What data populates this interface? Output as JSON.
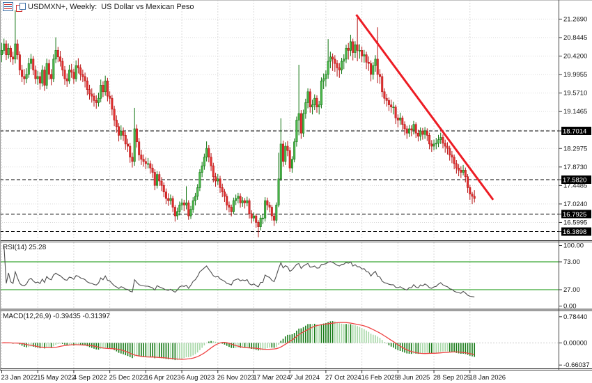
{
  "header": {
    "title": "USDMXN+, Weekly:  US Dollar vs Mexican Peso"
  },
  "colors": {
    "bull_fill": "#4cba4c",
    "bull_stroke": "#117411",
    "bear_fill": "#e63232",
    "bear_stroke": "#b51414",
    "grid": "#d9d9d9",
    "level_dash": "#000000",
    "trendline": "#ed1c24",
    "rsi_line": "#4d4d4d",
    "rsi_level": "#089000",
    "hist_dark": "#157a15",
    "hist_light": "#a6d7a6",
    "signal": "#ef4444",
    "axis_text": "#111111",
    "badge_bg": "#000000",
    "badge_text": "#ffffff"
  },
  "chart_data": {
    "type": "candlestick",
    "symbol": "USDMXN+",
    "timeframe": "Weekly",
    "description": "US Dollar vs Mexican Peso",
    "ylim": [
      16.21,
      21.71
    ],
    "price_axis_labels": [
      {
        "text": "21.2690",
        "price": 21.269
      },
      {
        "text": "20.8445",
        "price": 20.8445
      },
      {
        "text": "20.4200",
        "price": 20.42
      },
      {
        "text": "19.9955",
        "price": 19.9955
      },
      {
        "text": "19.5710",
        "price": 19.571
      },
      {
        "text": "19.1465",
        "price": 19.1465
      },
      {
        "text": "18.2975",
        "price": 18.2975
      },
      {
        "text": "17.8730",
        "price": 17.873
      },
      {
        "text": "17.4485",
        "price": 17.4485
      },
      {
        "text": "17.0240",
        "price": 17.024
      },
      {
        "text": "16.5995",
        "price": 16.5995
      }
    ],
    "level_badges": [
      {
        "text": "18.7014",
        "price": 18.7014
      },
      {
        "text": "17.5820",
        "price": 17.582
      },
      {
        "text": "16.7925",
        "price": 16.7925
      },
      {
        "text": "16.3898",
        "price": 16.3898
      }
    ],
    "horizontal_levels": [
      18.7014,
      17.582,
      16.7925,
      16.3898
    ],
    "trendline": {
      "week1": 157.5,
      "price1": 21.37,
      "week2": 218.3,
      "price2": 17.12
    },
    "time_axis_labels": [
      {
        "text": "23 Jan 2022",
        "week": 0
      },
      {
        "text": "15 May 2022",
        "week": 16
      },
      {
        "text": "4 Sep 2022",
        "week": 32
      },
      {
        "text": "25 Dec 2022",
        "week": 48
      },
      {
        "text": "16 Apr 2023",
        "week": 64
      },
      {
        "text": "6 Aug 2023",
        "week": 80
      },
      {
        "text": "26 Nov 2023",
        "week": 96
      },
      {
        "text": "17 Mar 2024",
        "week": 112
      },
      {
        "text": "7 Jul 2024",
        "week": 128
      },
      {
        "text": "27 Oct 2024",
        "week": 144
      },
      {
        "text": "16 Feb 2025",
        "week": 160
      },
      {
        "text": "8 Jun 2025",
        "week": 176
      },
      {
        "text": "28 Sep 2025",
        "week": 192
      },
      {
        "text": "18 Jan 2026",
        "week": 208
      }
    ],
    "rsi": {
      "label": "RSI(14) 25.28",
      "period": 14,
      "current": 25.28,
      "levels": [
        73,
        27
      ],
      "scale_labels": [
        {
          "text": "100.00",
          "value": 100
        },
        {
          "text": "73.00",
          "value": 73
        },
        {
          "text": "27.00",
          "value": 27
        },
        {
          "text": "0.00",
          "value": 0
        }
      ]
    },
    "macd": {
      "label": "MACD(12,26,9) -0.39435 -0.31397",
      "fast": 12,
      "slow": 26,
      "signal_period": 9,
      "current_macd": -0.39435,
      "current_signal": -0.31397,
      "scale_labels": [
        {
          "text": "0.78440",
          "value": 0.7844
        },
        {
          "text": "0.00000",
          "value": 0
        },
        {
          "text": "-0.66037",
          "value": -0.66037
        }
      ]
    },
    "candles_ohlc": [
      [
        20.45,
        20.72,
        20.28,
        20.55
      ],
      [
        20.55,
        20.82,
        20.47,
        20.7
      ],
      [
        20.7,
        20.78,
        20.33,
        20.45
      ],
      [
        20.45,
        20.71,
        20.36,
        20.6
      ],
      [
        20.6,
        20.66,
        20.28,
        20.4
      ],
      [
        20.4,
        20.52,
        20.22,
        20.35
      ],
      [
        20.35,
        21.47,
        20.25,
        20.7
      ],
      [
        20.7,
        20.8,
        20.34,
        20.45
      ],
      [
        20.45,
        20.53,
        19.98,
        20.1
      ],
      [
        20.1,
        20.22,
        19.82,
        19.95
      ],
      [
        19.95,
        20.12,
        19.76,
        19.9
      ],
      [
        19.9,
        20.14,
        19.8,
        20.0
      ],
      [
        20.0,
        20.38,
        19.92,
        20.25
      ],
      [
        20.25,
        20.47,
        20.12,
        20.35
      ],
      [
        20.35,
        20.42,
        19.98,
        20.1
      ],
      [
        20.1,
        20.2,
        19.78,
        19.9
      ],
      [
        19.9,
        20.08,
        19.76,
        19.95
      ],
      [
        19.95,
        20.05,
        19.65,
        19.8
      ],
      [
        19.8,
        20.21,
        19.72,
        20.1
      ],
      [
        20.1,
        20.18,
        19.62,
        19.75
      ],
      [
        19.75,
        20.36,
        19.66,
        20.25
      ],
      [
        20.25,
        20.34,
        19.88,
        20.0
      ],
      [
        20.0,
        20.12,
        19.75,
        19.9
      ],
      [
        19.9,
        20.46,
        19.82,
        20.35
      ],
      [
        20.35,
        20.85,
        20.26,
        20.55
      ],
      [
        20.55,
        20.63,
        20.28,
        20.4
      ],
      [
        20.4,
        20.54,
        20.18,
        20.3
      ],
      [
        20.3,
        20.38,
        19.96,
        20.1
      ],
      [
        20.1,
        20.19,
        19.76,
        19.9
      ],
      [
        19.9,
        20.02,
        19.71,
        19.85
      ],
      [
        19.85,
        20.22,
        19.78,
        20.1
      ],
      [
        20.1,
        20.24,
        19.92,
        20.05
      ],
      [
        20.05,
        20.13,
        19.78,
        19.9
      ],
      [
        19.9,
        20.32,
        19.83,
        20.2
      ],
      [
        20.2,
        20.37,
        20.02,
        20.15
      ],
      [
        20.15,
        20.23,
        19.86,
        20.0
      ],
      [
        20.0,
        20.11,
        19.82,
        19.95
      ],
      [
        19.95,
        20.04,
        19.7,
        19.85
      ],
      [
        19.85,
        19.93,
        19.52,
        19.65
      ],
      [
        19.65,
        19.76,
        19.42,
        19.55
      ],
      [
        19.55,
        19.68,
        19.35,
        19.5
      ],
      [
        19.5,
        19.57,
        19.26,
        19.4
      ],
      [
        19.4,
        19.52,
        19.21,
        19.35
      ],
      [
        19.35,
        19.58,
        19.26,
        19.45
      ],
      [
        19.45,
        19.88,
        19.36,
        19.75
      ],
      [
        19.75,
        19.84,
        19.48,
        19.6
      ],
      [
        19.6,
        19.97,
        19.51,
        19.85
      ],
      [
        19.85,
        19.92,
        19.38,
        19.5
      ],
      [
        19.5,
        19.61,
        19.32,
        19.45
      ],
      [
        19.45,
        19.53,
        19.06,
        19.2
      ],
      [
        19.2,
        19.28,
        18.81,
        18.95
      ],
      [
        18.95,
        19.06,
        18.66,
        18.8
      ],
      [
        18.8,
        18.88,
        18.46,
        18.6
      ],
      [
        18.6,
        18.83,
        18.5,
        18.7
      ],
      [
        18.7,
        18.78,
        18.47,
        18.6
      ],
      [
        18.6,
        18.68,
        18.27,
        18.4
      ],
      [
        18.4,
        18.52,
        18.22,
        18.35
      ],
      [
        18.35,
        18.43,
        17.97,
        18.1
      ],
      [
        18.1,
        18.2,
        17.86,
        18.0
      ],
      [
        18.0,
        19.23,
        17.9,
        18.75
      ],
      [
        18.75,
        18.85,
        18.32,
        18.45
      ],
      [
        18.45,
        18.54,
        18.02,
        18.15
      ],
      [
        18.15,
        18.27,
        17.92,
        18.05
      ],
      [
        18.05,
        18.16,
        17.88,
        18.0
      ],
      [
        18.0,
        18.09,
        17.82,
        17.95
      ],
      [
        17.95,
        18.08,
        17.84,
        17.95
      ],
      [
        17.95,
        18.02,
        17.72,
        17.85
      ],
      [
        17.85,
        17.94,
        17.62,
        17.75
      ],
      [
        17.75,
        17.82,
        17.34,
        17.45
      ],
      [
        17.45,
        17.78,
        17.38,
        17.7
      ],
      [
        17.7,
        17.77,
        17.44,
        17.55
      ],
      [
        17.55,
        17.64,
        17.32,
        17.45
      ],
      [
        17.45,
        17.52,
        17.18,
        17.3
      ],
      [
        17.3,
        17.38,
        17.02,
        17.15
      ],
      [
        17.15,
        17.27,
        16.98,
        17.1
      ],
      [
        17.1,
        17.24,
        17.01,
        17.15
      ],
      [
        17.15,
        17.21,
        16.84,
        16.95
      ],
      [
        16.95,
        17.0,
        16.62,
        16.75
      ],
      [
        16.75,
        16.94,
        16.66,
        16.85
      ],
      [
        16.85,
        17.08,
        16.76,
        17.0
      ],
      [
        17.0,
        17.14,
        16.88,
        17.05
      ],
      [
        17.05,
        17.12,
        16.86,
        17.0
      ],
      [
        17.0,
        17.43,
        16.9,
        17.05
      ],
      [
        17.05,
        17.11,
        16.66,
        16.75
      ],
      [
        16.75,
        16.98,
        16.68,
        16.9
      ],
      [
        16.9,
        17.18,
        16.82,
        17.1
      ],
      [
        17.1,
        17.28,
        16.99,
        17.2
      ],
      [
        17.2,
        17.48,
        17.12,
        17.4
      ],
      [
        17.4,
        17.82,
        17.32,
        17.75
      ],
      [
        17.75,
        17.99,
        17.64,
        17.9
      ],
      [
        17.9,
        18.18,
        17.81,
        18.1
      ],
      [
        18.1,
        18.46,
        18.0,
        18.3
      ],
      [
        18.3,
        18.38,
        17.98,
        18.1
      ],
      [
        18.1,
        18.19,
        17.78,
        17.9
      ],
      [
        17.9,
        17.97,
        17.52,
        17.65
      ],
      [
        17.65,
        17.74,
        17.42,
        17.55
      ],
      [
        17.55,
        17.71,
        17.46,
        17.6
      ],
      [
        17.6,
        17.67,
        17.28,
        17.4
      ],
      [
        17.4,
        17.49,
        17.18,
        17.3
      ],
      [
        17.3,
        17.37,
        17.07,
        17.2
      ],
      [
        17.2,
        17.26,
        16.88,
        17.0
      ],
      [
        17.0,
        17.08,
        16.83,
        16.95
      ],
      [
        16.95,
        17.01,
        16.74,
        16.85
      ],
      [
        16.85,
        17.17,
        16.79,
        17.1
      ],
      [
        17.1,
        17.24,
        17.0,
        17.15
      ],
      [
        17.15,
        17.28,
        17.04,
        17.2
      ],
      [
        17.2,
        17.27,
        16.94,
        17.05
      ],
      [
        17.05,
        17.18,
        16.96,
        17.1
      ],
      [
        17.1,
        17.16,
        16.92,
        17.05
      ],
      [
        17.05,
        17.19,
        16.97,
        17.1
      ],
      [
        17.1,
        17.15,
        16.69,
        16.8
      ],
      [
        16.8,
        16.88,
        16.58,
        16.7
      ],
      [
        16.7,
        16.83,
        16.62,
        16.75
      ],
      [
        16.75,
        16.8,
        16.48,
        16.6
      ],
      [
        16.6,
        16.65,
        16.26,
        16.5
      ],
      [
        16.5,
        16.77,
        16.42,
        16.7
      ],
      [
        16.7,
        16.79,
        16.56,
        16.7
      ],
      [
        16.7,
        17.18,
        16.62,
        17.1
      ],
      [
        17.1,
        17.17,
        16.88,
        17.0
      ],
      [
        17.0,
        17.07,
        16.83,
        16.95
      ],
      [
        16.95,
        17.0,
        16.64,
        16.75
      ],
      [
        16.75,
        16.82,
        16.52,
        16.65
      ],
      [
        16.65,
        17.06,
        16.58,
        17.0
      ],
      [
        17.0,
        18.2,
        16.95,
        17.6
      ],
      [
        17.6,
        18.99,
        17.55,
        18.4
      ],
      [
        18.4,
        18.48,
        17.88,
        18.0
      ],
      [
        18.0,
        18.44,
        17.92,
        18.35
      ],
      [
        18.35,
        18.47,
        18.12,
        18.25
      ],
      [
        18.25,
        18.33,
        17.76,
        17.85
      ],
      [
        17.85,
        18.12,
        17.74,
        18.05
      ],
      [
        18.05,
        18.53,
        17.98,
        18.45
      ],
      [
        18.45,
        19.03,
        18.34,
        18.95
      ],
      [
        18.95,
        20.22,
        18.6,
        19.1
      ],
      [
        19.1,
        19.18,
        18.52,
        18.65
      ],
      [
        18.65,
        19.19,
        18.56,
        19.1
      ],
      [
        19.1,
        19.44,
        18.98,
        19.35
      ],
      [
        19.35,
        19.68,
        19.22,
        19.6
      ],
      [
        19.6,
        19.67,
        19.12,
        19.25
      ],
      [
        19.25,
        19.42,
        19.08,
        19.3
      ],
      [
        19.3,
        19.54,
        19.18,
        19.45
      ],
      [
        19.45,
        19.52,
        19.12,
        19.25
      ],
      [
        19.25,
        19.39,
        19.08,
        19.3
      ],
      [
        19.3,
        19.93,
        19.22,
        19.85
      ],
      [
        19.85,
        20.02,
        19.66,
        19.9
      ],
      [
        19.9,
        20.09,
        19.72,
        20.0
      ],
      [
        20.0,
        20.81,
        19.9,
        20.3
      ],
      [
        20.3,
        20.52,
        20.14,
        20.4
      ],
      [
        20.4,
        20.48,
        20.08,
        20.35
      ],
      [
        20.35,
        20.44,
        20.06,
        20.25
      ],
      [
        20.25,
        20.33,
        19.95,
        20.15
      ],
      [
        20.15,
        20.26,
        19.92,
        20.1
      ],
      [
        20.1,
        20.38,
        20.01,
        20.3
      ],
      [
        20.3,
        20.46,
        20.12,
        20.35
      ],
      [
        20.35,
        20.68,
        20.26,
        20.6
      ],
      [
        20.6,
        20.72,
        20.34,
        20.55
      ],
      [
        20.55,
        20.91,
        20.42,
        20.75
      ],
      [
        20.75,
        20.82,
        20.32,
        20.5
      ],
      [
        20.5,
        20.76,
        20.38,
        20.68
      ],
      [
        20.68,
        21.29,
        20.3,
        20.55
      ],
      [
        20.55,
        20.69,
        20.36,
        20.55
      ],
      [
        20.55,
        20.64,
        20.28,
        20.42
      ],
      [
        20.42,
        20.56,
        20.27,
        20.45
      ],
      [
        20.45,
        20.52,
        20.12,
        20.28
      ],
      [
        20.28,
        20.41,
        20.08,
        20.25
      ],
      [
        20.25,
        20.32,
        19.84,
        20.0
      ],
      [
        20.0,
        20.28,
        19.88,
        20.2
      ],
      [
        20.2,
        20.44,
        20.06,
        20.35
      ],
      [
        20.35,
        21.08,
        19.8,
        20.0
      ],
      [
        20.0,
        20.12,
        19.78,
        19.95
      ],
      [
        19.95,
        20.02,
        19.48,
        19.6
      ],
      [
        19.6,
        19.68,
        19.32,
        19.45
      ],
      [
        19.45,
        19.55,
        19.26,
        19.4
      ],
      [
        19.4,
        19.47,
        19.16,
        19.3
      ],
      [
        19.3,
        19.42,
        19.12,
        19.25
      ],
      [
        19.25,
        19.37,
        19.08,
        19.25
      ],
      [
        19.25,
        19.3,
        18.86,
        19.0
      ],
      [
        19.0,
        19.08,
        18.78,
        18.95
      ],
      [
        18.95,
        19.12,
        18.84,
        19.0
      ],
      [
        19.0,
        19.05,
        18.72,
        18.85
      ],
      [
        18.85,
        18.92,
        18.6,
        18.75
      ],
      [
        18.75,
        18.82,
        18.52,
        18.65
      ],
      [
        18.65,
        18.84,
        18.56,
        18.75
      ],
      [
        18.75,
        18.83,
        18.58,
        18.72
      ],
      [
        18.72,
        18.93,
        18.62,
        18.85
      ],
      [
        18.85,
        18.9,
        18.54,
        18.65
      ],
      [
        18.65,
        18.73,
        18.46,
        18.58
      ],
      [
        18.58,
        18.78,
        18.48,
        18.7
      ],
      [
        18.7,
        18.77,
        18.5,
        18.62
      ],
      [
        18.62,
        18.79,
        18.52,
        18.7
      ],
      [
        18.7,
        18.76,
        18.47,
        18.6
      ],
      [
        18.6,
        18.66,
        18.28,
        18.4
      ],
      [
        18.4,
        18.49,
        18.22,
        18.35
      ],
      [
        18.35,
        18.5,
        18.26,
        18.4
      ],
      [
        18.4,
        18.54,
        18.28,
        18.42
      ],
      [
        18.42,
        18.61,
        18.33,
        18.5
      ],
      [
        18.5,
        18.66,
        18.4,
        18.55
      ],
      [
        18.55,
        18.62,
        18.3,
        18.42
      ],
      [
        18.42,
        18.5,
        18.2,
        18.35
      ],
      [
        18.35,
        18.44,
        18.16,
        18.3
      ],
      [
        18.3,
        18.36,
        18.02,
        18.15
      ],
      [
        18.15,
        18.24,
        17.96,
        18.1
      ],
      [
        18.1,
        18.16,
        17.82,
        17.95
      ],
      [
        17.95,
        18.03,
        17.72,
        17.85
      ],
      [
        17.85,
        17.94,
        17.66,
        17.8
      ],
      [
        17.8,
        17.89,
        17.62,
        17.75
      ],
      [
        17.75,
        17.92,
        17.68,
        17.8
      ],
      [
        17.8,
        17.86,
        17.52,
        17.65
      ],
      [
        17.65,
        17.71,
        17.28,
        17.4
      ],
      [
        17.4,
        17.46,
        17.12,
        17.25
      ],
      [
        17.25,
        17.3,
        17.02,
        17.2
      ],
      [
        17.2,
        17.34,
        17.06,
        17.15
      ]
    ]
  }
}
